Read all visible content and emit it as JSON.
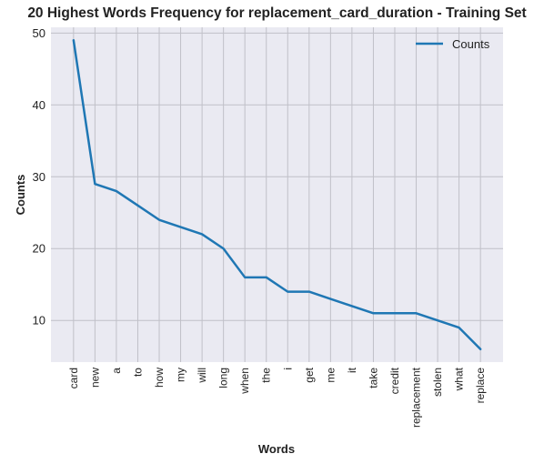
{
  "chart_data": {
    "type": "line",
    "title": "20 Highest Words Frequency for replacement_card_duration - Training Set",
    "xlabel": "Words",
    "ylabel": "Counts",
    "categories": [
      "card",
      "new",
      "a",
      "to",
      "how",
      "my",
      "will",
      "long",
      "when",
      "the",
      "i",
      "get",
      "me",
      "it",
      "take",
      "credit",
      "replacement",
      "stolen",
      "what",
      "replace"
    ],
    "series": [
      {
        "name": "Counts",
        "values": [
          49,
          29,
          28,
          26,
          24,
          23,
          22,
          20,
          16,
          16,
          14,
          14,
          13,
          12,
          11,
          11,
          11,
          10,
          9,
          6
        ]
      }
    ],
    "yticks": [
      10,
      20,
      30,
      40,
      50
    ],
    "ylim": [
      4.2,
      50.8
    ],
    "grid": true,
    "legend_position": "top-right",
    "colors": {
      "line": "#1f77b4",
      "plot_background": "#eaeaf2",
      "grid": "#c0c0c8"
    }
  }
}
